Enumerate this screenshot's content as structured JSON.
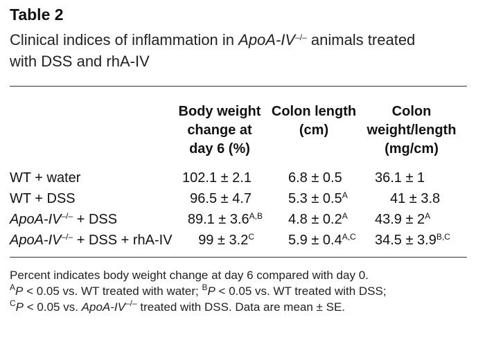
{
  "table_label": "Table 2",
  "caption": {
    "prefix": "Clinical indices of inflammation in ",
    "gene": "ApoA-IV",
    "gene_sup": "–/–",
    "suffix_line1": " animals treated",
    "line2": "with DSS and rhA-IV"
  },
  "headers": {
    "col1": [
      "Body weight",
      "change at",
      "day 6 (%)"
    ],
    "col2": [
      "Colon length",
      "(cm)"
    ],
    "col3": [
      "Colon",
      "weight/length",
      "(mg/cm)"
    ]
  },
  "rows": [
    {
      "label_plain": "WT + water",
      "v1": "102.1 ± 2.1",
      "v1_sup": "",
      "v2": "6.8 ± 0.5",
      "v2_sup": "",
      "v3": "36.1 ± 1",
      "v3_sup": ""
    },
    {
      "label_plain": "WT + DSS",
      "v1": "96.5 ± 4.7",
      "v1_sup": "",
      "v2": "5.3 ± 0.5",
      "v2_sup": "A",
      "v3": "41 ± 3.8",
      "v3_sup": ""
    },
    {
      "label_gene": "ApoA-IV",
      "label_sup": "–/–",
      "label_rest": " + DSS",
      "v1": "89.1 ± 3.6",
      "v1_sup": "A,B",
      "v2": "4.8 ± 0.2",
      "v2_sup": "A",
      "v3": "43.9 ± 2",
      "v3_sup": "A"
    },
    {
      "label_gene": "ApoA-IV",
      "label_sup": "–/–",
      "label_rest": " + DSS + rhA-IV",
      "v1": "99 ± 3.2",
      "v1_sup": "C",
      "v2": "5.9 ± 0.4",
      "v2_sup": "A,C",
      "v3": "34.5 ± 3.9",
      "v3_sup": "B,C"
    }
  ],
  "footnotes": {
    "line1": "Percent indicates body weight change at day 6 compared with day 0.",
    "a_sup": "A",
    "a_p": "P",
    "a_text": " < 0.05 vs. WT treated with water; ",
    "b_sup": "B",
    "b_p": "P",
    "b_text": " < 0.05 vs. WT treated with DSS;",
    "c_sup": "C",
    "c_p": "P",
    "c_text": " < 0.05 vs. ",
    "c_gene": "ApoA-IV",
    "c_gene_sup": "–/–",
    "c_rest": " treated with DSS. Data are mean ± SE."
  }
}
